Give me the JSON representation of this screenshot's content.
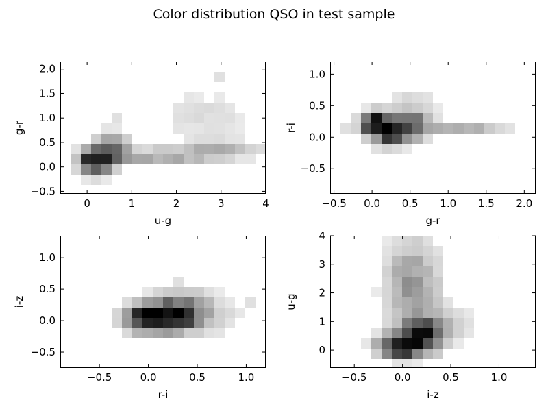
{
  "figure": {
    "title": "Color distribution QSO in test sample"
  },
  "chart_data": [
    {
      "type": "heatmap",
      "xlabel": "u-g",
      "ylabel": "g-r",
      "xlim": [
        -0.6,
        4.0
      ],
      "ylim": [
        -0.55,
        2.15
      ],
      "xticks": [
        0,
        1,
        2,
        3,
        4
      ],
      "xtick_labels": [
        "0",
        "1",
        "2",
        "3",
        "4"
      ],
      "yticks": [
        -0.5,
        0.0,
        0.5,
        1.0,
        1.5,
        2.0
      ],
      "ytick_labels": [
        "−0.5",
        "0.0",
        "0.5",
        "1.0",
        "1.5",
        "2.0"
      ],
      "grid": false,
      "colormap": "Greys",
      "blobs": [
        {
          "x": 0.18,
          "y": 0.12,
          "sx": 0.22,
          "sy": 0.16,
          "w": 1.0
        },
        {
          "x": 0.55,
          "y": 0.35,
          "sx": 0.25,
          "sy": 0.2,
          "w": 0.45
        },
        {
          "x": 1.6,
          "y": 0.22,
          "sx": 0.75,
          "sy": 0.1,
          "w": 0.28
        },
        {
          "x": 3.0,
          "y": 0.35,
          "sx": 0.6,
          "sy": 0.13,
          "w": 0.18
        },
        {
          "x": 2.6,
          "y": 1.05,
          "sx": 0.8,
          "sy": 0.35,
          "w": 0.07
        }
      ]
    },
    {
      "type": "heatmap",
      "xlabel": "g-r",
      "ylabel": "r-i",
      "xlim": [
        -0.55,
        2.15
      ],
      "ylim": [
        -0.9,
        1.2
      ],
      "xticks": [
        -0.5,
        0.0,
        0.5,
        1.0,
        1.5,
        2.0
      ],
      "xtick_labels": [
        "−0.5",
        "0.0",
        "0.5",
        "1.0",
        "1.5",
        "2.0"
      ],
      "yticks": [
        -0.5,
        0.0,
        0.5,
        1.0
      ],
      "ytick_labels": [
        "−0.5",
        "0.0",
        "0.5",
        "1.0"
      ],
      "grid": false,
      "colormap": "Greys",
      "blobs": [
        {
          "x": 0.05,
          "y": 0.22,
          "sx": 0.12,
          "sy": 0.11,
          "w": 1.0
        },
        {
          "x": 0.25,
          "y": 0.08,
          "sx": 0.15,
          "sy": 0.13,
          "w": 0.85
        },
        {
          "x": 0.55,
          "y": 0.2,
          "sx": 0.15,
          "sy": 0.15,
          "w": 0.45
        },
        {
          "x": 1.2,
          "y": 0.15,
          "sx": 0.35,
          "sy": 0.08,
          "w": 0.22
        },
        {
          "x": 0.5,
          "y": 0.55,
          "sx": 0.25,
          "sy": 0.12,
          "w": 0.08
        }
      ]
    },
    {
      "type": "heatmap",
      "xlabel": "r-i",
      "ylabel": "i-z",
      "xlim": [
        -0.9,
        1.2
      ],
      "ylim": [
        -0.75,
        1.35
      ],
      "xticks": [
        -0.5,
        0.0,
        0.5,
        1.0
      ],
      "xtick_labels": [
        "−0.5",
        "0.0",
        "0.5",
        "1.0"
      ],
      "yticks": [
        -0.5,
        0.0,
        0.5,
        1.0
      ],
      "ytick_labels": [
        "−0.5",
        "0.0",
        "0.5",
        "1.0"
      ],
      "grid": false,
      "colormap": "Greys",
      "blobs": [
        {
          "x": 0.2,
          "y": 0.05,
          "sx": 0.2,
          "sy": 0.13,
          "w": 1.0
        },
        {
          "x": 0.0,
          "y": 0.05,
          "sx": 0.15,
          "sy": 0.15,
          "w": 0.6
        },
        {
          "x": 0.35,
          "y": 0.3,
          "sx": 0.2,
          "sy": 0.12,
          "w": 0.25
        },
        {
          "x": 0.55,
          "y": 0.05,
          "sx": 0.25,
          "sy": 0.2,
          "w": 0.12
        }
      ]
    },
    {
      "type": "heatmap",
      "xlabel": "i-z",
      "ylabel": "u-g",
      "xlim": [
        -0.75,
        1.38
      ],
      "ylim": [
        -0.62,
        4.0
      ],
      "xticks": [
        -0.5,
        0.0,
        0.5,
        1.0
      ],
      "xtick_labels": [
        "−0.5",
        "0.0",
        "0.5",
        "1.0"
      ],
      "yticks": [
        0,
        1,
        2,
        3,
        4
      ],
      "ytick_labels": [
        "0",
        "1",
        "2",
        "3",
        "4"
      ],
      "grid": false,
      "colormap": "Greys",
      "blobs": [
        {
          "x": 0.0,
          "y": 0.15,
          "sx": 0.15,
          "sy": 0.25,
          "w": 1.0
        },
        {
          "x": 0.2,
          "y": 0.5,
          "sx": 0.15,
          "sy": 0.35,
          "w": 0.6
        },
        {
          "x": 0.1,
          "y": 2.3,
          "sx": 0.18,
          "sy": 1.0,
          "w": 0.3
        },
        {
          "x": 0.35,
          "y": 0.9,
          "sx": 0.2,
          "sy": 0.4,
          "w": 0.22
        }
      ]
    }
  ]
}
